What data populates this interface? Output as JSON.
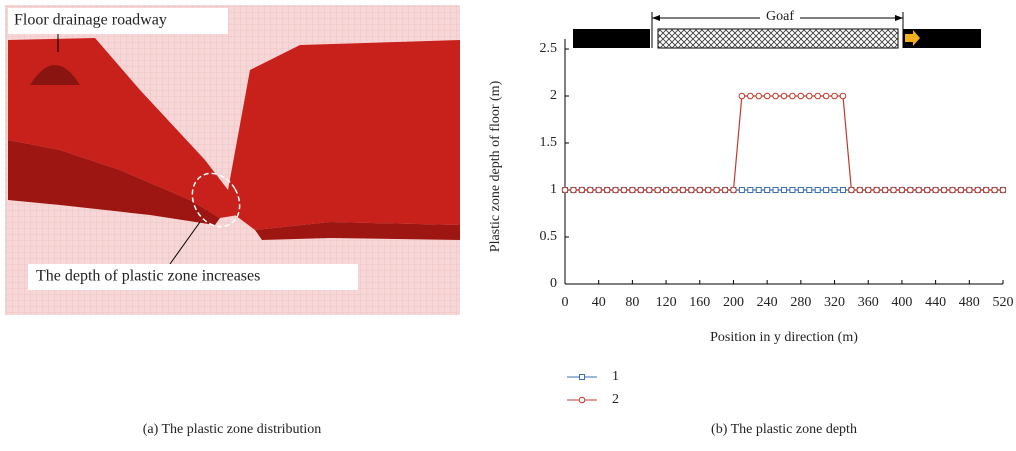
{
  "panel_a": {
    "labels": [
      "Floor drainage roadway",
      "The depth of plastic zone increases"
    ],
    "caption": "(a) The plastic zone distribution"
  },
  "chart_data": {
    "type": "line",
    "caption": "(b) The plastic zone depth",
    "annotation": "Goaf",
    "xlabel": "Position in y direction (m)",
    "ylabel": "Plastic zone depth of floor (m)",
    "x": [
      0,
      10,
      20,
      30,
      40,
      50,
      60,
      70,
      80,
      90,
      100,
      110,
      120,
      130,
      140,
      150,
      160,
      170,
      180,
      190,
      200,
      210,
      220,
      230,
      240,
      250,
      260,
      270,
      280,
      290,
      300,
      310,
      320,
      330,
      340,
      350,
      360,
      370,
      380,
      390,
      400,
      410,
      420,
      430,
      440,
      450,
      460,
      470,
      480,
      490,
      500,
      510,
      520
    ],
    "series": [
      {
        "name": "1",
        "color": "#3a6fb0",
        "marker": "square",
        "values": [
          1,
          1,
          1,
          1,
          1,
          1,
          1,
          1,
          1,
          1,
          1,
          1,
          1,
          1,
          1,
          1,
          1,
          1,
          1,
          1,
          1,
          1,
          1,
          1,
          1,
          1,
          1,
          1,
          1,
          1,
          1,
          1,
          1,
          1,
          1,
          1,
          1,
          1,
          1,
          1,
          1,
          1,
          1,
          1,
          1,
          1,
          1,
          1,
          1,
          1,
          1,
          1,
          1
        ]
      },
      {
        "name": "2",
        "color": "#c0392b",
        "marker": "circle",
        "values": [
          1,
          1,
          1,
          1,
          1,
          1,
          1,
          1,
          1,
          1,
          1,
          1,
          1,
          1,
          1,
          1,
          1,
          1,
          1,
          1,
          1,
          2,
          2,
          2,
          2,
          2,
          2,
          2,
          2,
          2,
          2,
          2,
          2,
          2,
          1,
          1,
          1,
          1,
          1,
          1,
          1,
          1,
          1,
          1,
          1,
          1,
          1,
          1,
          1,
          1,
          1,
          1,
          1
        ]
      }
    ],
    "xlim": [
      0,
      520
    ],
    "xticks": [
      0,
      40,
      80,
      120,
      160,
      200,
      240,
      280,
      320,
      360,
      400,
      440,
      480,
      520
    ],
    "ylim": [
      0,
      2.5
    ],
    "yticks": [
      0,
      0.5,
      1,
      1.5,
      2,
      2.5
    ]
  }
}
